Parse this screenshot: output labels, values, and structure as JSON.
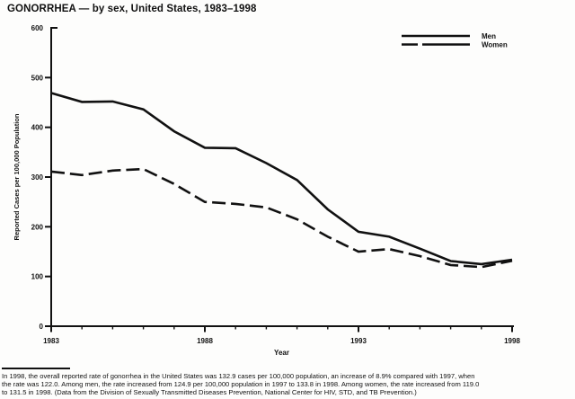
{
  "title": "GONORRHEA — by sex, United States, 1983–1998",
  "chart_data": {
    "type": "line",
    "title": "GONORRHEA — by sex, United States, 1983–1998",
    "xlabel": "Year",
    "ylabel": "Reported Cases per 100,000 Population",
    "x": [
      1983,
      1984,
      1985,
      1986,
      1987,
      1988,
      1989,
      1990,
      1991,
      1992,
      1993,
      1994,
      1995,
      1996,
      1997,
      1998
    ],
    "series": [
      {
        "name": "Men",
        "line_style": "solid",
        "values": [
          469,
          451,
          452,
          436,
          392,
          359,
          358,
          328,
          294,
          235,
          190,
          180,
          156,
          131,
          124.9,
          133.8
        ]
      },
      {
        "name": "Women",
        "line_style": "dashed",
        "values": [
          311,
          304,
          313,
          316,
          286,
          250,
          246,
          239,
          215,
          180,
          150,
          155,
          141,
          123,
          119.0,
          131.5
        ]
      }
    ],
    "ylim": [
      0,
      600
    ],
    "yticks": [
      0,
      100,
      200,
      300,
      400,
      500,
      600
    ],
    "xticks_major": [
      1983,
      1988,
      1993,
      1998
    ],
    "xticks_minor_every_year": true,
    "grid": false,
    "legend_position": "top-right",
    "line_color": "#111111"
  },
  "footnote": {
    "lines": [
      "In 1998, the overall reported rate of gonorrhea in the United States was 132.9 cases per 100,000 population, an increase of 8.9% compared with 1997, when",
      "the rate was 122.0. Among men, the rate increased from 124.9 per 100,000 population in 1997 to 133.8 in 1998. Among women, the rate increased from 119.0",
      "to 131.5 in 1998. (Data from the Division of Sexually Transmitted Diseases Prevention, National Center for HIV, STD, and TB Prevention.)"
    ]
  },
  "colors": {
    "ink": "#111111",
    "background": "#fdfdfc"
  }
}
